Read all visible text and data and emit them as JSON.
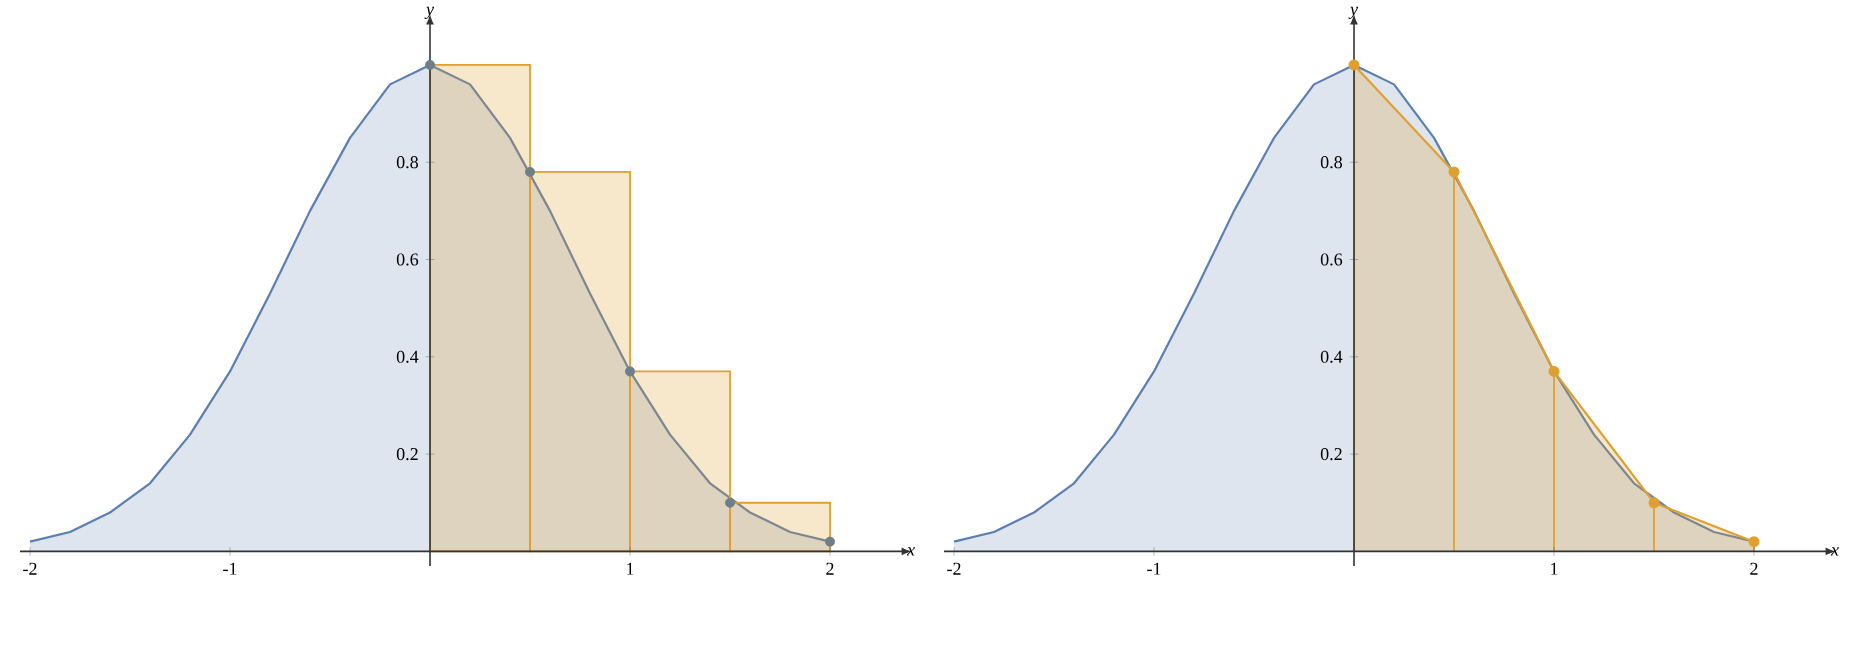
{
  "chart_data": [
    {
      "type": "area",
      "xlabel": "x",
      "ylabel": "y",
      "xlim": [
        -2.05,
        2.35
      ],
      "ylim": [
        -0.03,
        1.08
      ],
      "xticks": [
        -2,
        -1,
        1,
        2
      ],
      "yticks": [
        0.2,
        0.4,
        0.6,
        0.8
      ],
      "series": [
        {
          "color": "#5b7fae",
          "x": [
            -2,
            -1.8,
            -1.6,
            -1.4,
            -1.2,
            -1,
            -0.8,
            -0.6,
            -0.4,
            -0.2,
            0,
            0.2,
            0.4,
            0.6,
            0.8,
            1,
            1.2,
            1.4,
            1.6,
            1.8,
            2
          ],
          "values": [
            0.02,
            0.04,
            0.08,
            0.14,
            0.24,
            0.37,
            0.53,
            0.7,
            0.85,
            0.96,
            1,
            0.96,
            0.85,
            0.7,
            0.53,
            0.37,
            0.24,
            0.14,
            0.08,
            0.04,
            0.02
          ]
        },
        {
          "type": "bar",
          "color": "#e0a030",
          "x": [
            0.25,
            0.75,
            1.25,
            1.75
          ],
          "values": [
            1,
            0.78,
            0.37,
            0.1
          ]
        },
        {
          "type": "scatter",
          "marker": "circle",
          "color": "#6f7f8a",
          "x": [
            0,
            0.5,
            1,
            1.5,
            2
          ],
          "values": [
            1,
            0.78,
            0.37,
            0.1,
            0.02
          ]
        }
      ]
    },
    {
      "type": "area",
      "xlabel": "x",
      "ylabel": "y",
      "xlim": [
        -2.05,
        2.35
      ],
      "ylim": [
        -0.03,
        1.08
      ],
      "xticks": [
        -2,
        -1,
        1,
        2
      ],
      "yticks": [
        0.2,
        0.4,
        0.6,
        0.8
      ],
      "series": [
        {
          "color": "#5b7fae",
          "x": [
            -2,
            -1.8,
            -1.6,
            -1.4,
            -1.2,
            -1,
            -0.8,
            -0.6,
            -0.4,
            -0.2,
            0,
            0.2,
            0.4,
            0.6,
            0.8,
            1,
            1.2,
            1.4,
            1.6,
            1.8,
            2
          ],
          "values": [
            0.02,
            0.04,
            0.08,
            0.14,
            0.24,
            0.37,
            0.53,
            0.7,
            0.85,
            0.96,
            1,
            0.96,
            0.85,
            0.7,
            0.53,
            0.37,
            0.24,
            0.14,
            0.08,
            0.04,
            0.02
          ]
        },
        {
          "color": "#e0a030",
          "x": [
            0,
            0.5,
            1,
            1.5,
            2
          ],
          "values": [
            1,
            0.78,
            0.37,
            0.1,
            0.02
          ]
        },
        {
          "type": "lollipop",
          "marker": "circle",
          "color": "#e0a030",
          "x": [
            0,
            0.5,
            1,
            1.5,
            2
          ],
          "values": [
            1,
            0.78,
            0.37,
            0.1,
            0.02
          ]
        }
      ]
    }
  ]
}
